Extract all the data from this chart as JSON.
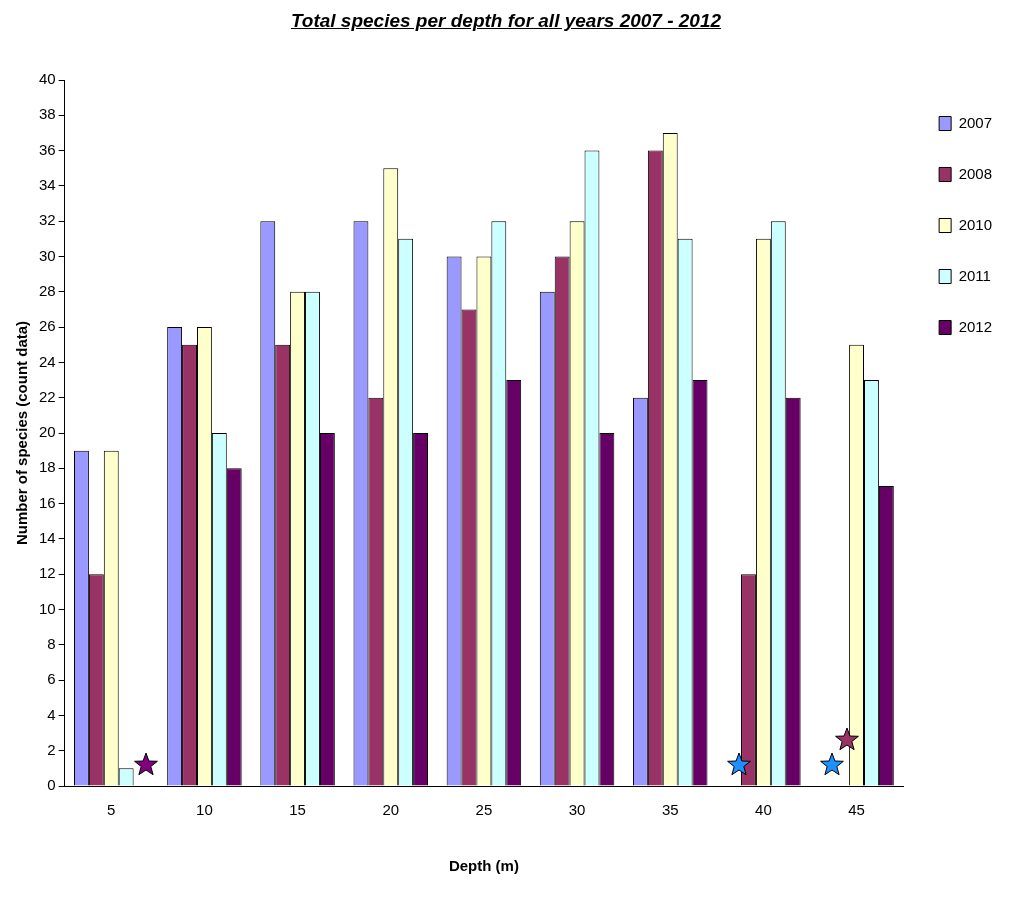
{
  "chart_data": {
    "type": "bar",
    "title": "Total species per depth for all years 2007 - 2012",
    "xlabel": "Depth (m)",
    "ylabel": "Number of species (count data)",
    "categories": [
      "5",
      "10",
      "15",
      "20",
      "25",
      "30",
      "35",
      "40",
      "45"
    ],
    "series": [
      {
        "name": "2007",
        "color": "#9999ff",
        "values": [
          19,
          26,
          32,
          32,
          30,
          28,
          22,
          null,
          null
        ]
      },
      {
        "name": "2008",
        "color": "#993366",
        "values": [
          12,
          25,
          25,
          22,
          27,
          30,
          36,
          12,
          null
        ]
      },
      {
        "name": "2010",
        "color": "#ffffcc",
        "values": [
          19,
          26,
          28,
          35,
          30,
          32,
          37,
          31,
          25
        ]
      },
      {
        "name": "2011",
        "color": "#ccffff",
        "values": [
          1,
          20,
          28,
          31,
          32,
          36,
          31,
          32,
          23
        ]
      },
      {
        "name": "2012",
        "color": "#660066",
        "values": [
          null,
          18,
          20,
          20,
          23,
          20,
          23,
          22,
          17
        ]
      }
    ],
    "ylim": [
      0,
      40
    ],
    "yticks": [
      0,
      2,
      4,
      6,
      8,
      10,
      12,
      14,
      16,
      18,
      20,
      22,
      24,
      26,
      28,
      30,
      32,
      34,
      36,
      38,
      40
    ],
    "grid": false,
    "legend": "right"
  }
}
